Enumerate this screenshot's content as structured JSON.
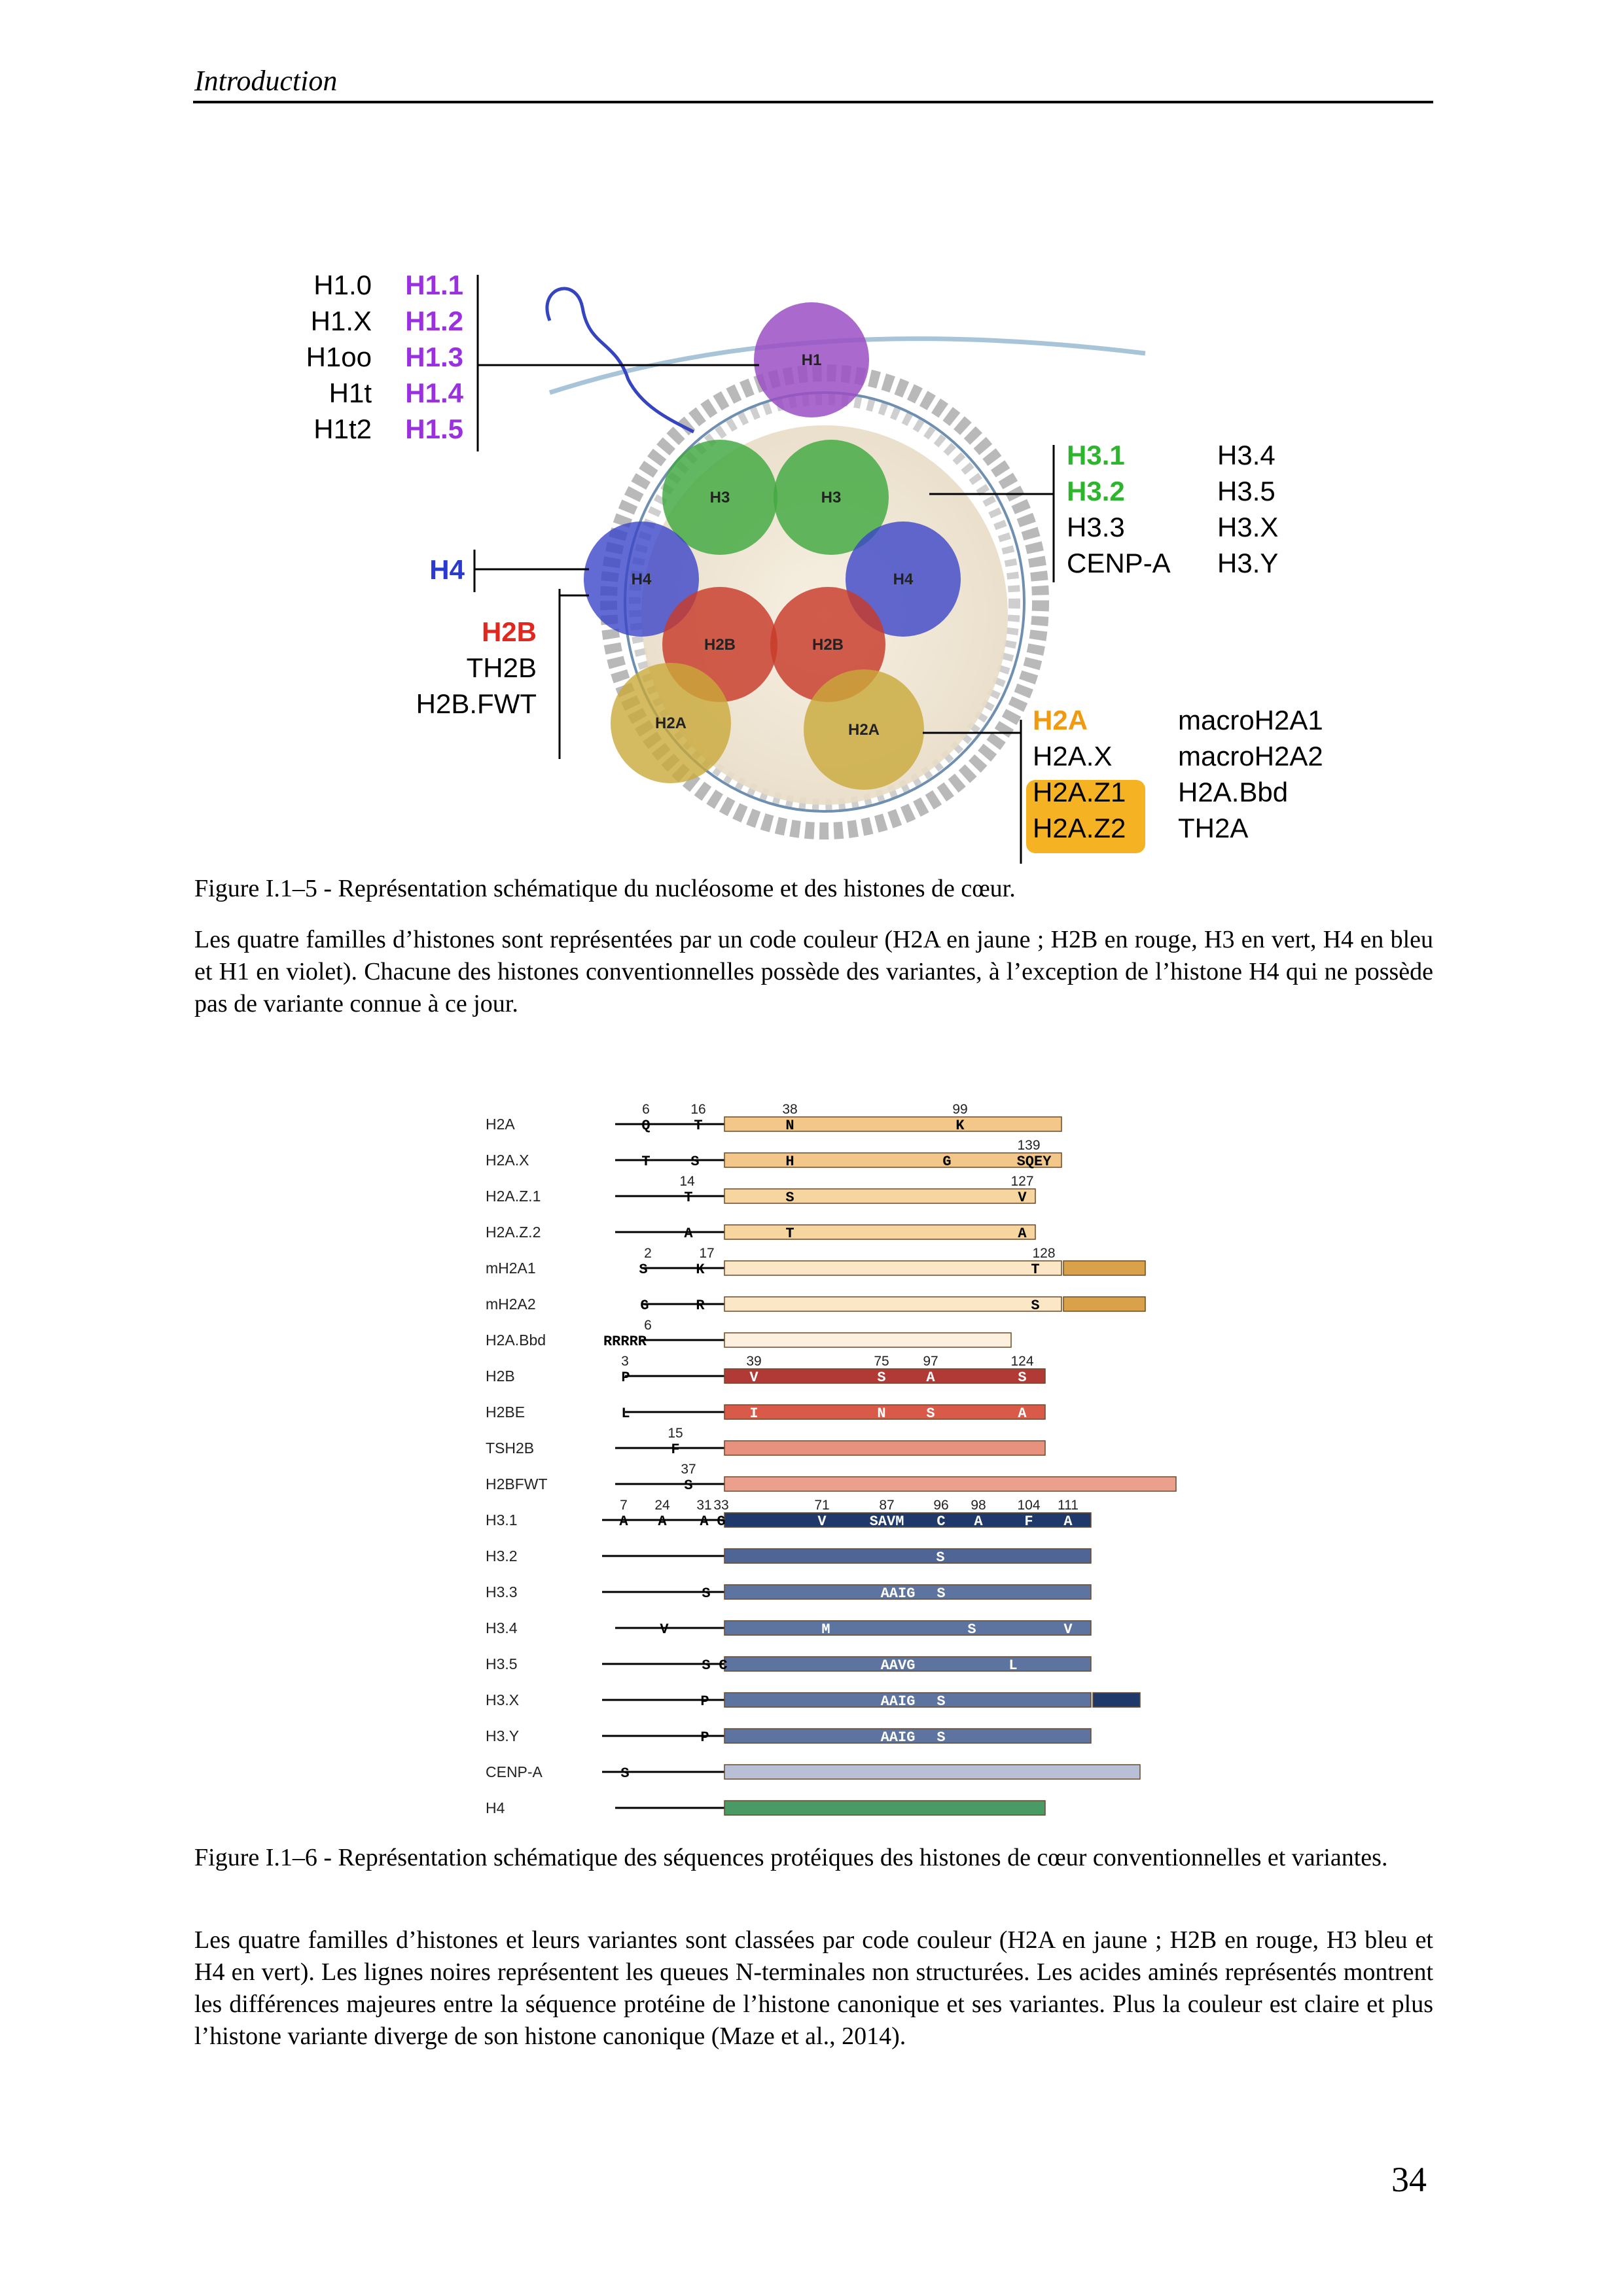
{
  "header": {
    "title": "Introduction"
  },
  "figure5": {
    "h1_variants_black": [
      "H1.0",
      "H1.X",
      "H1oo",
      "H1t",
      "H1t2"
    ],
    "h1_variants_purple": [
      "H1.1",
      "H1.2",
      "H1.3",
      "H1.4",
      "H1.5"
    ],
    "h3_variants_green": [
      "H3.1",
      "H3.2"
    ],
    "h3_variants_black_left": [
      "H3.3",
      "CENP-A"
    ],
    "h3_variants_black_right": [
      "H3.4",
      "H3.5",
      "H3.X",
      "H3.Y"
    ],
    "h4_label": "H4",
    "h2b_label": "H2B",
    "h2b_variants": [
      "TH2B",
      "H2B.FWT"
    ],
    "h2a_label": "H2A",
    "h2a_variants_left": [
      "H2A.X"
    ],
    "h2a_variants_highlight": [
      "H2A.Z1",
      "H2A.Z2"
    ],
    "h2a_variants_right": [
      "macroH2A1",
      "macroH2A2",
      "H2A.Bbd",
      "TH2A"
    ],
    "sphere_labels": {
      "h1": "H1",
      "h3_left": "H3",
      "h3_right": "H3",
      "h4_left": "H4",
      "h4_right": "H4",
      "h2b_left": "H2B",
      "h2b_right": "H2B",
      "h2a_left": "H2A",
      "h2a_right": "H2A"
    },
    "colors": {
      "h1": "#9b4fc4",
      "h3": "#3fa83f",
      "h4": "#3b45c8",
      "h2b": "#c83a2a",
      "h2a": "#c9a93a",
      "label_h1": "#9b30e0",
      "label_h3": "#2db52d",
      "label_h4": "#2a3ad0",
      "label_h2b": "#e0281e",
      "label_h2a": "#f09a10",
      "highlight_h2az": "#f5b323"
    },
    "caption": "Figure I.1–5 - Représentation schématique du nucléosome et des histones de cœur.",
    "text": "Les quatre familles d’histones sont représentées par un code couleur (H2A en jaune ; H2B en rouge, H3 en vert, H4 en bleu et H1 en violet). Chacune des histones conventionnelles possède des variantes, à l’exception de l’histone H4 qui ne possède pas de variante connue à ce jour."
  },
  "figure6": {
    "rows": [
      {
        "name": "H2A",
        "color": "#f3c78a"
      },
      {
        "name": "H2A.X",
        "color": "#f3c78a"
      },
      {
        "name": "H2A.Z.1",
        "color": "#f6d69e"
      },
      {
        "name": "H2A.Z.2",
        "color": "#f6d69e"
      },
      {
        "name": "mH2A1",
        "color": "#fbe6c6"
      },
      {
        "name": "mH2A2",
        "color": "#fbe6c6"
      },
      {
        "name": "H2A.Bbd",
        "color": "#fdf0dc"
      },
      {
        "name": "H2B",
        "color": "#b13a36"
      },
      {
        "name": "H2BE",
        "color": "#d95a48"
      },
      {
        "name": "TSH2B",
        "color": "#e8917e"
      },
      {
        "name": "H2BFWT",
        "color": "#eba08e"
      },
      {
        "name": "H3.1",
        "color": "#1f3a6a"
      },
      {
        "name": "H3.2",
        "color": "#4e6595"
      },
      {
        "name": "H3.3",
        "color": "#5d73a0"
      },
      {
        "name": "H3.4",
        "color": "#5d73a0"
      },
      {
        "name": "H3.5",
        "color": "#5d73a0"
      },
      {
        "name": "H3.X",
        "color": "#5d73a0"
      },
      {
        "name": "H3.Y",
        "color": "#5d73a0"
      },
      {
        "name": "CENP-A",
        "color": "#b8c0d8"
      },
      {
        "name": "H4",
        "color": "#4a9a66"
      }
    ],
    "positions": {
      "H2A": [
        "6",
        "16",
        "38",
        "99"
      ],
      "H2A.X": [
        "139"
      ],
      "H2A.Z.1": [
        "14",
        "127"
      ],
      "mH2A1": [
        "2",
        "17",
        "128"
      ],
      "H2A.Bbd": [
        "6"
      ],
      "H2B": [
        "3",
        "39",
        "75",
        "97",
        "124"
      ],
      "TSH2B": [
        "15"
      ],
      "H2BFWT": [
        "37"
      ],
      "H3.1": [
        "7",
        "24",
        "31",
        "33",
        "71",
        "87",
        "96",
        "98",
        "104",
        "111"
      ]
    },
    "residues": {
      "H2A": [
        "Q",
        "T",
        "N",
        "K"
      ],
      "H2A.X": [
        "T",
        "S",
        "H",
        "G",
        "SQEY"
      ],
      "H2A.Z.1": [
        "T",
        "S",
        "V"
      ],
      "H2A.Z.2": [
        "A",
        "T",
        "A"
      ],
      "mH2A1": [
        "S",
        "K",
        "T"
      ],
      "mH2A2": [
        "G",
        "R",
        "S"
      ],
      "H2A.Bbd": [
        "RRRRR"
      ],
      "H2B": [
        "P",
        "V",
        "S",
        "A",
        "S"
      ],
      "H2BE": [
        "L",
        "I",
        "N",
        "S",
        "A"
      ],
      "TSH2B": [
        "F"
      ],
      "H2BFWT": [
        "S"
      ],
      "H3.1": [
        "A",
        "A",
        "A",
        "G",
        "V",
        "SAVM",
        "C",
        "A",
        "F",
        "A"
      ],
      "H3.2": [
        "S"
      ],
      "H3.3": [
        "S",
        "AAIG",
        "S"
      ],
      "H3.4": [
        "V",
        "M",
        "S",
        "V"
      ],
      "H3.5": [
        "S",
        "C",
        "AAVG",
        "L"
      ],
      "H3.X": [
        "P",
        "AAIG",
        "S"
      ],
      "H3.Y": [
        "P",
        "AAIG",
        "S"
      ],
      "CENP-A": [
        "S"
      ]
    },
    "caption": "Figure I.1–6 - Représentation schématique des séquences protéiques des histones de cœur conventionnelles et variantes.",
    "text": "Les quatre familles d’histones et leurs variantes sont classées par code couleur (H2A en jaune ; H2B en rouge, H3 bleu et H4 en vert). Les lignes noires représentent les queues N-terminales non structurées. Les acides aminés représentés montrent les différences majeures entre la séquence protéine de l’histone canonique et ses variantes. Plus la couleur est claire et plus l’histone variante diverge de son histone canonique (Maze et al., 2014)."
  },
  "page_number": "34"
}
